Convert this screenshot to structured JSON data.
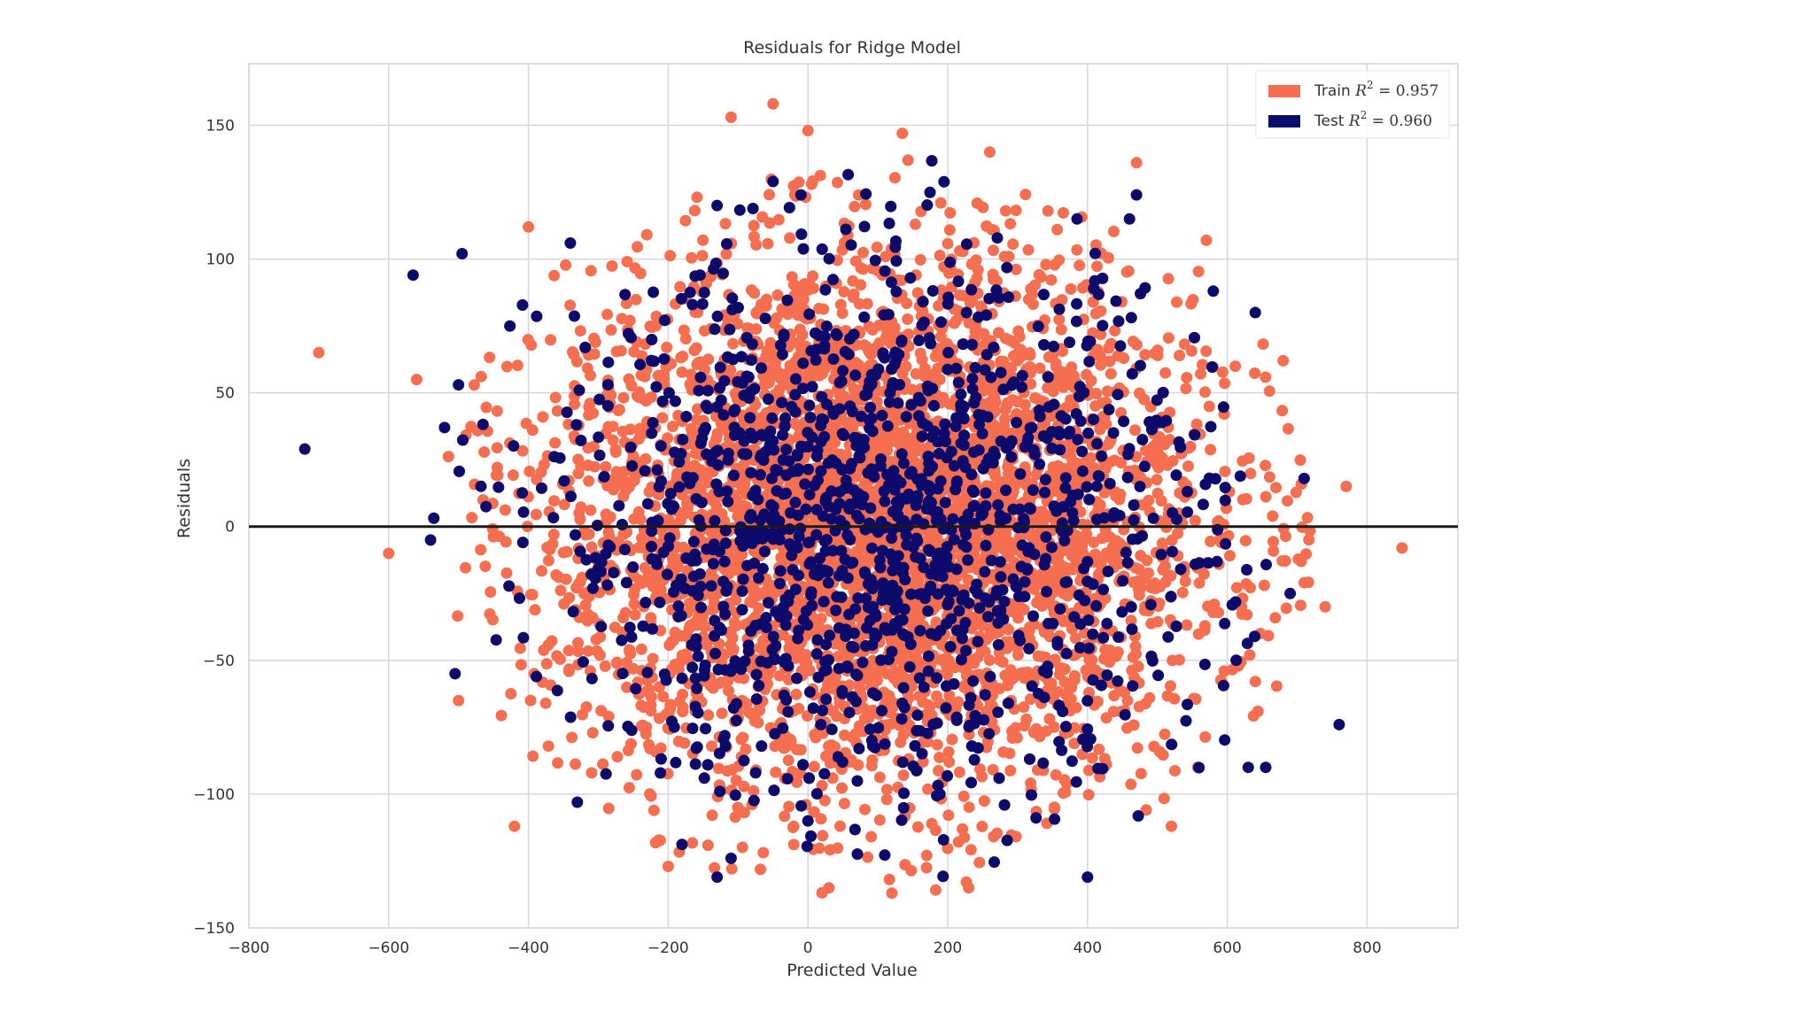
{
  "chart_data": {
    "type": "scatter",
    "title": "Residuals for Ridge Model",
    "xlabel": "Predicted Value",
    "ylabel": "Residuals",
    "xlim": [
      -800,
      930
    ],
    "ylim": [
      -150,
      173
    ],
    "xticks": [
      -800,
      -600,
      -400,
      -200,
      0,
      200,
      400,
      600,
      800
    ],
    "xtick_labels": [
      "−800",
      "−600",
      "−400",
      "−200",
      "0",
      "200",
      "400",
      "600",
      "800"
    ],
    "yticks": [
      -150,
      -100,
      -50,
      0,
      50,
      100,
      150
    ],
    "ytick_labels": [
      "−150",
      "−100",
      "−50",
      "0",
      "50",
      "100",
      "150"
    ],
    "grid": true,
    "reference_line": 0,
    "legend_position": "top-right",
    "series": [
      {
        "name": "Train",
        "label_prefix": "Train",
        "r2_label": "R",
        "r2_value": "= 0.957",
        "color": "#F46E4F",
        "summary": {
          "center_x": 100,
          "std_x": 235,
          "center_y": 0,
          "std_y": 50,
          "approx_points": 5400
        },
        "extreme_points": [
          {
            "x": -700,
            "y": 65
          },
          {
            "x": -600,
            "y": -10
          },
          {
            "x": 850,
            "y": -8
          },
          {
            "x": -400,
            "y": 112
          },
          {
            "x": -420,
            "y": -112
          },
          {
            "x": -50,
            "y": 158
          },
          {
            "x": -110,
            "y": 153
          },
          {
            "x": 135,
            "y": 147
          },
          {
            "x": 0,
            "y": 148
          },
          {
            "x": 260,
            "y": 140
          },
          {
            "x": 470,
            "y": 136
          },
          {
            "x": 770,
            "y": 15
          },
          {
            "x": 120,
            "y": -137
          },
          {
            "x": 230,
            "y": -135
          },
          {
            "x": 30,
            "y": -135
          },
          {
            "x": -200,
            "y": -127
          },
          {
            "x": 680,
            "y": 62
          },
          {
            "x": 740,
            "y": -30
          },
          {
            "x": -560,
            "y": 55
          },
          {
            "x": -500,
            "y": -65
          },
          {
            "x": 520,
            "y": -112
          },
          {
            "x": 570,
            "y": 107
          }
        ]
      },
      {
        "name": "Test",
        "label_prefix": "Test",
        "r2_label": "R",
        "r2_value": "= 0.960",
        "color": "#0C0A6B",
        "summary": {
          "center_x": 100,
          "std_x": 235,
          "center_y": 0,
          "std_y": 50,
          "approx_points": 1350
        },
        "extreme_points": [
          {
            "x": -720,
            "y": 29
          },
          {
            "x": -565,
            "y": 94
          },
          {
            "x": -495,
            "y": 102
          },
          {
            "x": -500,
            "y": 53
          },
          {
            "x": -520,
            "y": 37
          },
          {
            "x": -540,
            "y": -5
          },
          {
            "x": -505,
            "y": -55
          },
          {
            "x": -340,
            "y": 106
          },
          {
            "x": -330,
            "y": -103
          },
          {
            "x": -50,
            "y": 129
          },
          {
            "x": -10,
            "y": 124
          },
          {
            "x": -130,
            "y": 120
          },
          {
            "x": 470,
            "y": 124
          },
          {
            "x": 460,
            "y": 115
          },
          {
            "x": 385,
            "y": 115
          },
          {
            "x": 760,
            "y": -74
          },
          {
            "x": 655,
            "y": -90
          },
          {
            "x": 630,
            "y": -90
          },
          {
            "x": 400,
            "y": -131
          },
          {
            "x": -130,
            "y": -131
          },
          {
            "x": -110,
            "y": -124
          },
          {
            "x": 0,
            "y": -110
          },
          {
            "x": 580,
            "y": 88
          },
          {
            "x": 640,
            "y": 80
          },
          {
            "x": 690,
            "y": -25
          },
          {
            "x": 710,
            "y": 18
          }
        ]
      }
    ]
  }
}
